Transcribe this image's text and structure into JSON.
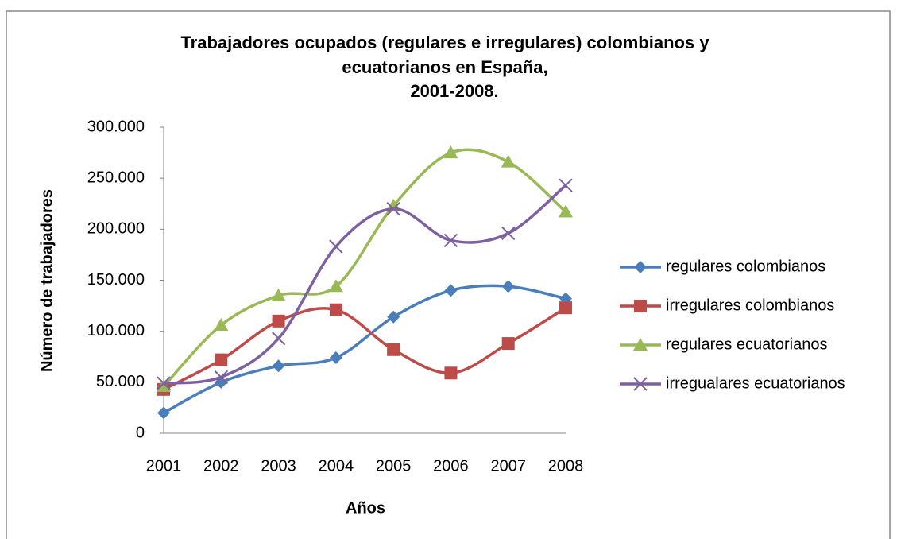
{
  "chart_data": {
    "type": "line",
    "title": [
      "Trabajadores ocupados (regulares e irregulares) colombianos y",
      "ecuatorianos en España,",
      "2001-2008."
    ],
    "x_label": "Años",
    "y_label": "Número de trabajadores",
    "categories": [
      "2001",
      "2002",
      "2003",
      "2004",
      "2005",
      "2006",
      "2007",
      "2008"
    ],
    "series": [
      {
        "name": "regulares colombianos",
        "color": "#4a7ebb",
        "marker": "diamond",
        "values": [
          20000,
          50000,
          66000,
          74000,
          114000,
          140000,
          144000,
          132000
        ]
      },
      {
        "name": "irregulares colombianos",
        "color": "#be4b48",
        "marker": "square",
        "values": [
          43000,
          72000,
          110000,
          121000,
          82000,
          59000,
          88000,
          123000
        ]
      },
      {
        "name": "regulares ecuatorianos",
        "color": "#98b954",
        "marker": "triangle",
        "values": [
          46000,
          106000,
          135000,
          144000,
          223000,
          275000,
          266000,
          217000
        ]
      },
      {
        "name": "irregualares ecuatorianos",
        "color": "#7d60a0",
        "marker": "x",
        "values": [
          49000,
          55000,
          93000,
          183000,
          220000,
          189000,
          196000,
          243000
        ]
      }
    ],
    "ylim": [
      0,
      300000
    ],
    "yticks": [
      0,
      {
        "value": 50000,
        "label": "50.000"
      },
      {
        "value": 100000,
        "label": "100.000"
      },
      {
        "value": 150000,
        "label": "150.000"
      },
      {
        "value": 200000,
        "label": "200.000"
      },
      {
        "value": 250000,
        "label": "250.000"
      },
      {
        "value": 300000,
        "label": "300.000"
      }
    ],
    "smooth": true,
    "grid": false,
    "legend": "right"
  }
}
